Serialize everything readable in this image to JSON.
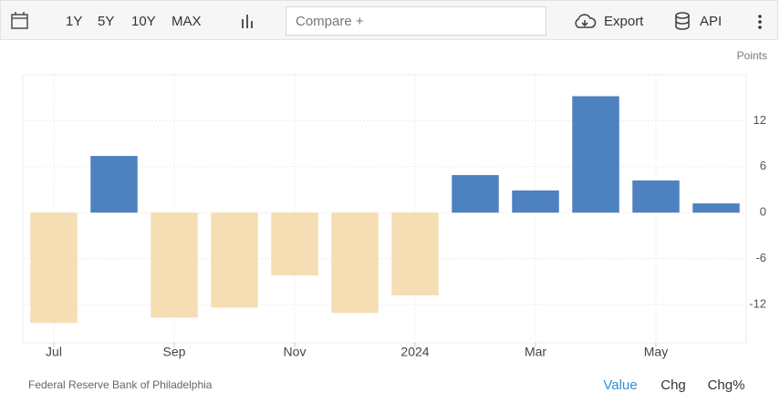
{
  "toolbar": {
    "ranges": [
      "1Y",
      "5Y",
      "10Y",
      "MAX"
    ],
    "compare": "Compare +",
    "export": "Export",
    "api": "API"
  },
  "chart_data": {
    "type": "bar",
    "y_unit": "Points",
    "categories": [
      "Jul",
      null,
      "Sep",
      null,
      "Nov",
      null,
      "2024",
      null,
      "Mar",
      null,
      "May",
      null
    ],
    "values": [
      -14.4,
      7.4,
      -13.7,
      -12.4,
      -8.2,
      -13.1,
      -10.8,
      4.9,
      2.9,
      15.2,
      4.2,
      1.2
    ],
    "color_positive": "#4d81bf",
    "color_negative": "#f5deb3",
    "ylim": [
      -17,
      18
    ],
    "yticks": [
      -12,
      -6,
      0,
      6,
      12
    ],
    "grid": true,
    "source": "Federal Reserve Bank of Philadelphia"
  },
  "footer_tabs": [
    "Value",
    "Chg",
    "Chg%"
  ]
}
